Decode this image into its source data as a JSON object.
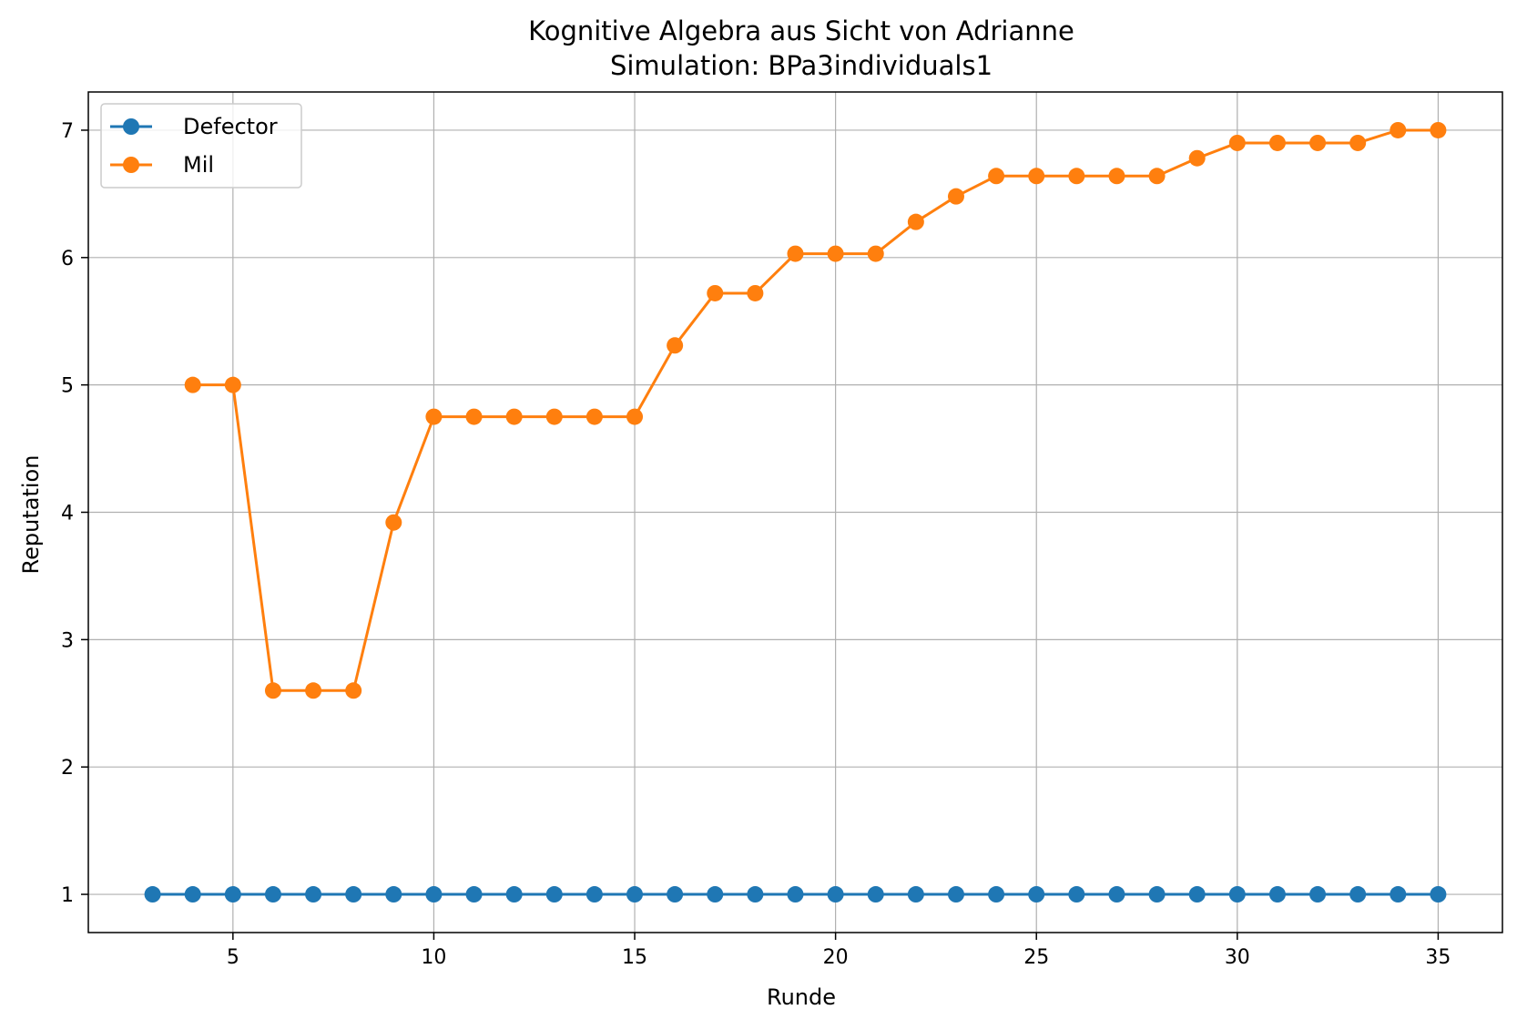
{
  "chart_data": {
    "type": "line",
    "title": "Kognitive Algebra aus Sicht von Adrianne",
    "subtitle": "Simulation: BPa3individuals1",
    "xlabel": "Runde",
    "ylabel": "Reputation",
    "xlim": [
      1.4,
      36.6
    ],
    "ylim": [
      0.7,
      7.3
    ],
    "xticks": [
      5,
      10,
      15,
      20,
      25,
      30,
      35
    ],
    "yticks": [
      1,
      2,
      3,
      4,
      5,
      6,
      7
    ],
    "grid": true,
    "legend_position": "top-left",
    "series": [
      {
        "name": "Defector",
        "color": "#1f77b4",
        "x": [
          3,
          4,
          5,
          6,
          7,
          8,
          9,
          10,
          11,
          12,
          13,
          14,
          15,
          16,
          17,
          18,
          19,
          20,
          21,
          22,
          23,
          24,
          25,
          26,
          27,
          28,
          29,
          30,
          31,
          32,
          33,
          34,
          35
        ],
        "y": [
          1,
          1,
          1,
          1,
          1,
          1,
          1,
          1,
          1,
          1,
          1,
          1,
          1,
          1,
          1,
          1,
          1,
          1,
          1,
          1,
          1,
          1,
          1,
          1,
          1,
          1,
          1,
          1,
          1,
          1,
          1,
          1,
          1
        ]
      },
      {
        "name": "Mil",
        "color": "#ff7f0e",
        "x": [
          4,
          5,
          6,
          7,
          8,
          9,
          10,
          11,
          12,
          13,
          14,
          15,
          16,
          17,
          18,
          19,
          20,
          21,
          22,
          23,
          24,
          25,
          26,
          27,
          28,
          29,
          30,
          31,
          32,
          33,
          34,
          35
        ],
        "y": [
          5.0,
          5.0,
          2.6,
          2.6,
          2.6,
          3.92,
          4.75,
          4.75,
          4.75,
          4.75,
          4.75,
          4.75,
          5.31,
          5.72,
          5.72,
          6.03,
          6.03,
          6.03,
          6.28,
          6.48,
          6.64,
          6.64,
          6.64,
          6.64,
          6.64,
          6.78,
          6.9,
          6.9,
          6.9,
          6.9,
          7.0,
          7.0
        ]
      }
    ]
  }
}
